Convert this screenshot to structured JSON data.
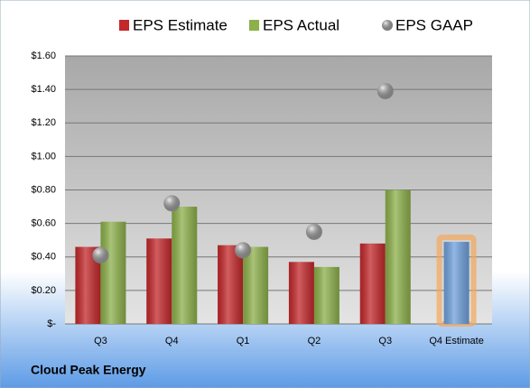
{
  "chart_data": {
    "type": "bar",
    "categories": [
      "Q3",
      "Q4",
      "Q1",
      "Q2",
      "Q3",
      "Q4 Estimate"
    ],
    "series": [
      {
        "name": "EPS Estimate",
        "color": "#c3282b",
        "values": [
          0.46,
          0.51,
          0.47,
          0.37,
          0.48,
          0.49
        ]
      },
      {
        "name": "EPS Actual",
        "color": "#8cb04a",
        "values": [
          0.61,
          0.7,
          0.46,
          0.34,
          0.8,
          null
        ]
      },
      {
        "name": "EPS GAAP",
        "color": "#a9a9a9",
        "marker": "circle",
        "values": [
          0.41,
          0.72,
          0.44,
          0.55,
          1.39,
          null
        ]
      }
    ],
    "estimate_highlight_color": "#6fa0dc",
    "ylim": [
      0,
      1.6
    ],
    "yticks": [
      {
        "value": 0,
        "label": "$-"
      },
      {
        "value": 0.2,
        "label": "$0.20"
      },
      {
        "value": 0.4,
        "label": "$0.40"
      },
      {
        "value": 0.6,
        "label": "$0.60"
      },
      {
        "value": 0.8,
        "label": "$0.80"
      },
      {
        "value": 1.0,
        "label": "$1.00"
      },
      {
        "value": 1.2,
        "label": "$1.20"
      },
      {
        "value": 1.4,
        "label": "$1.40"
      },
      {
        "value": 1.6,
        "label": "$1.60"
      }
    ],
    "grid": true,
    "legend": "top",
    "footer": "Cloud Peak Energy"
  }
}
